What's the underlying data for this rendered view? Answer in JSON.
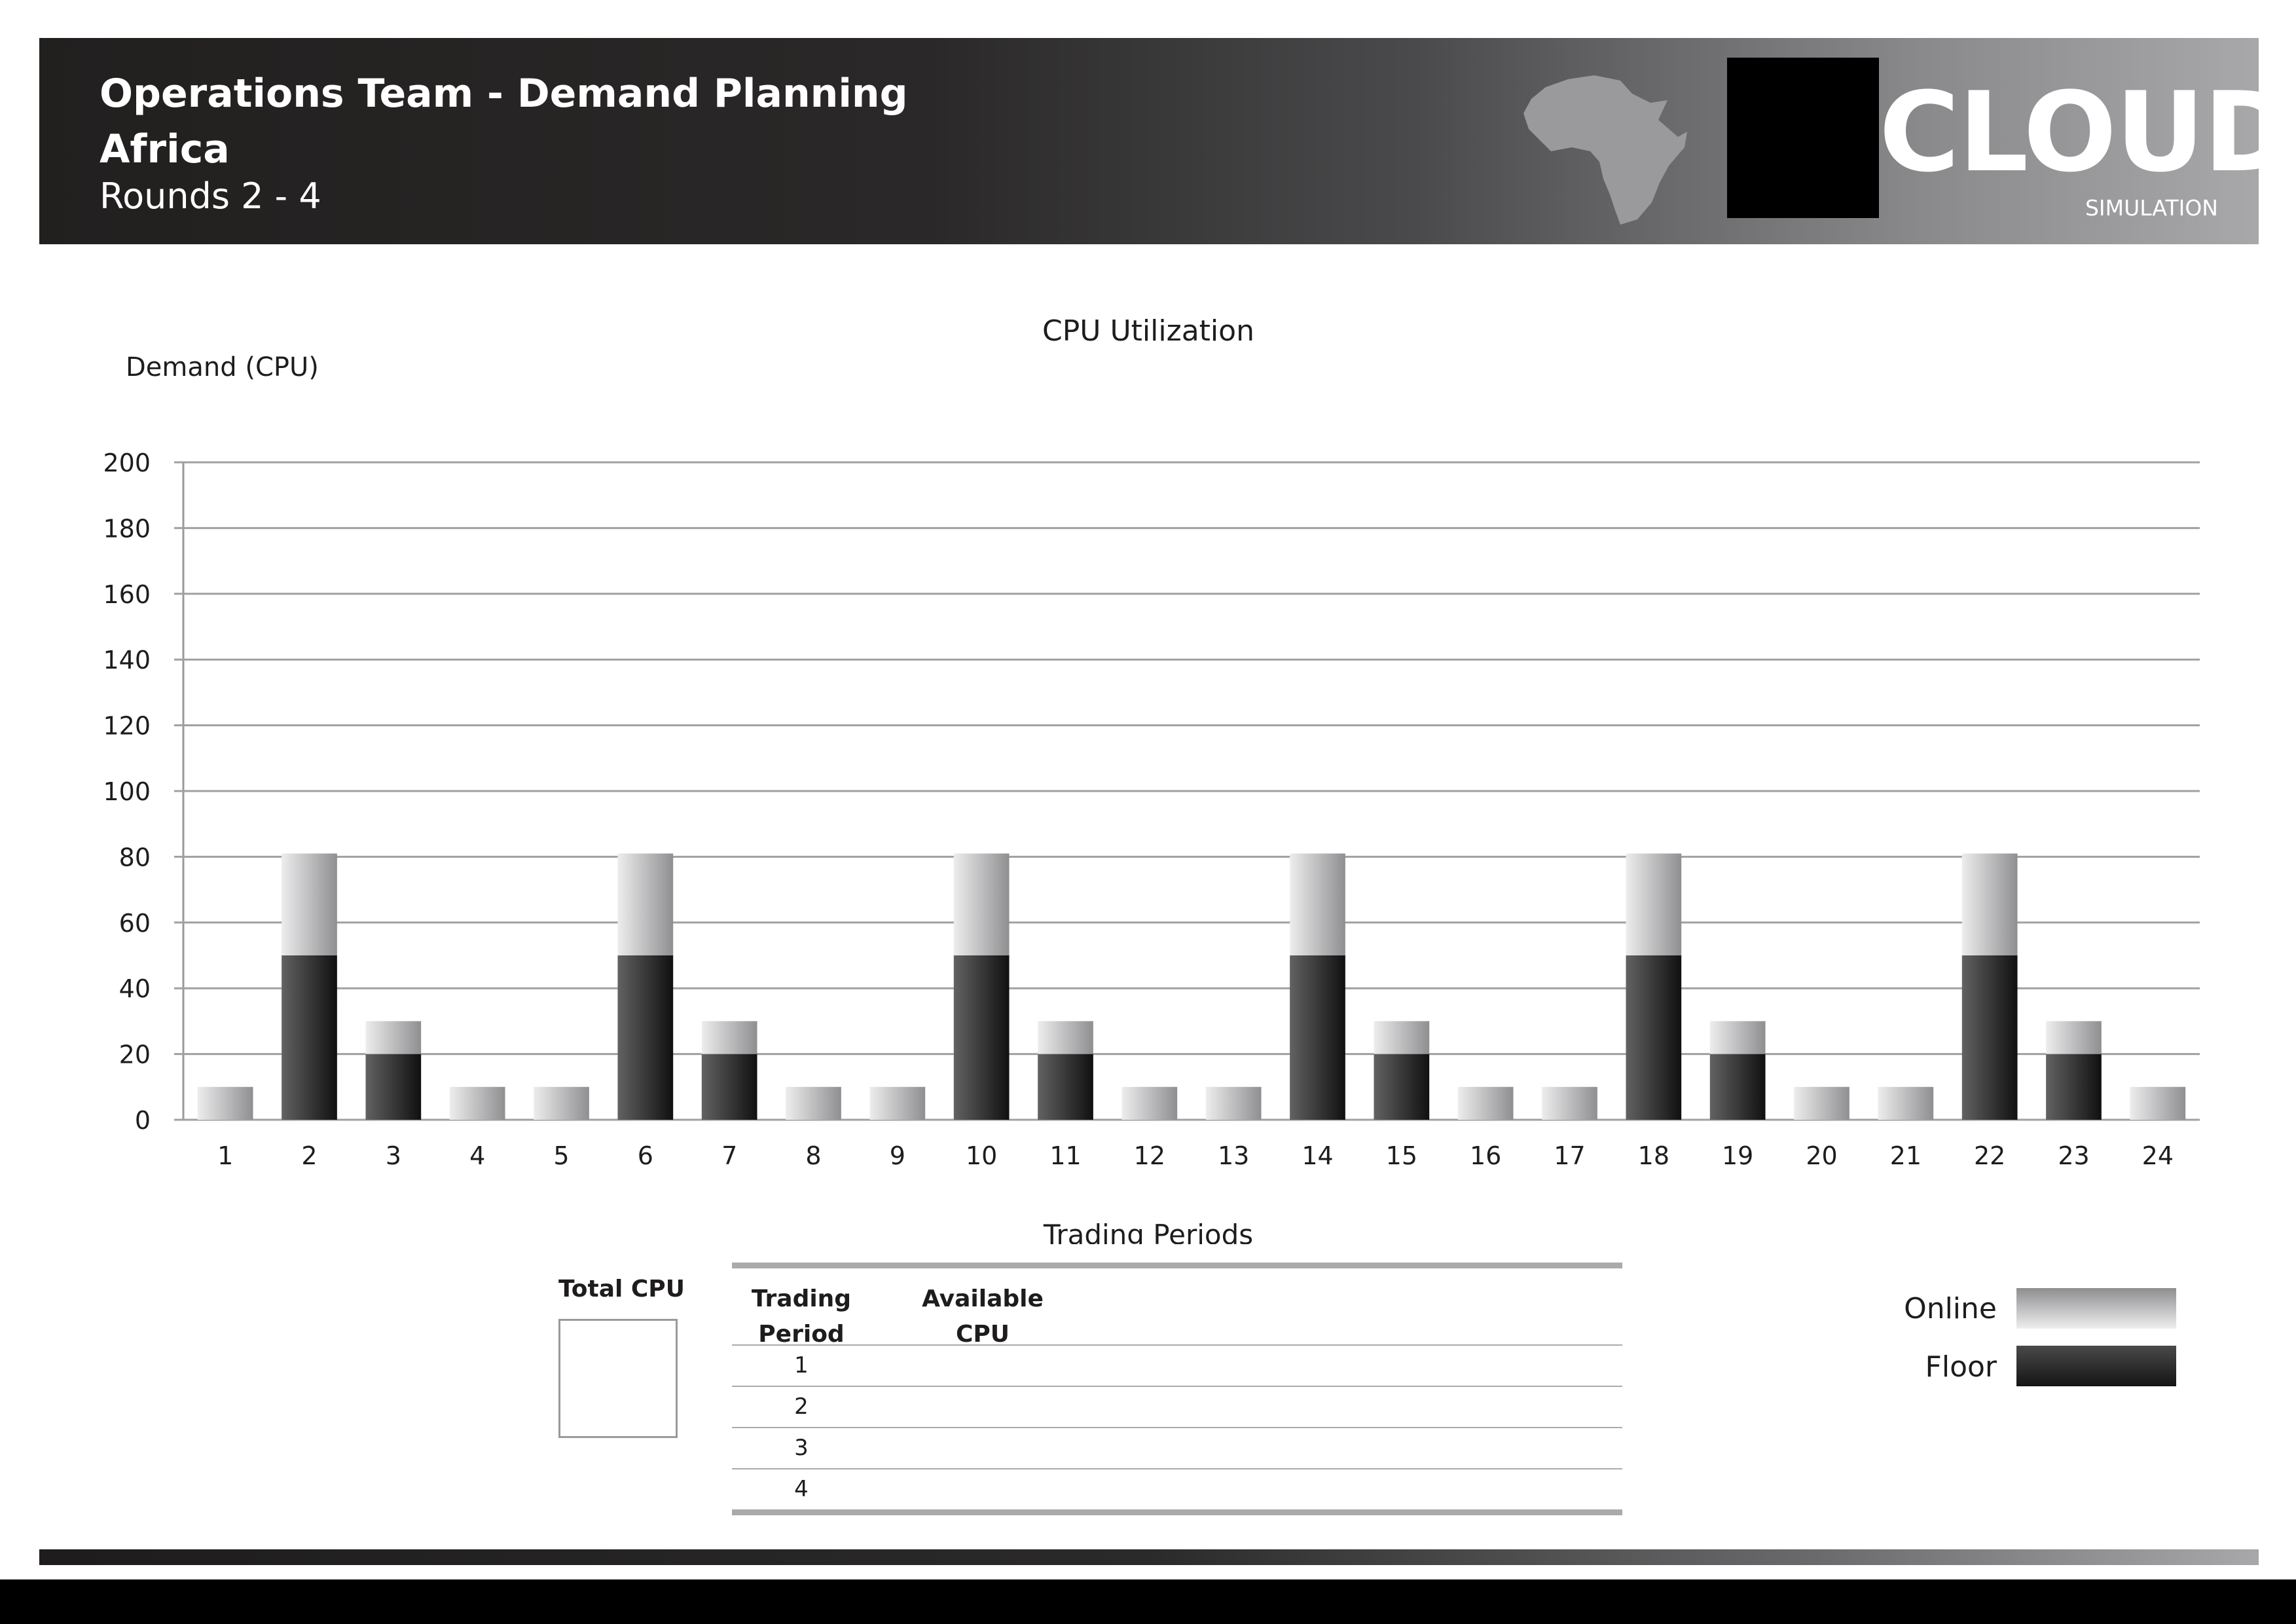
{
  "header": {
    "title": "Operations Team - Demand Planning",
    "region": "Africa",
    "rounds": "Rounds 2 - 4",
    "logo_word": "CLOUD",
    "logo_sub": "SIMULATION",
    "map_icon": "africa-map-icon"
  },
  "chart_data": {
    "type": "bar",
    "stacked": true,
    "title": "CPU Utilization",
    "ylabel": "Demand (CPU)",
    "xlabel": "Trading Periods",
    "ylim": [
      0,
      200
    ],
    "yticks": [
      0,
      20,
      40,
      60,
      80,
      100,
      120,
      140,
      160,
      180,
      200
    ],
    "grid": true,
    "categories": [
      "1",
      "2",
      "3",
      "4",
      "5",
      "6",
      "7",
      "8",
      "9",
      "10",
      "11",
      "12",
      "13",
      "14",
      "15",
      "16",
      "17",
      "18",
      "19",
      "20",
      "21",
      "22",
      "23",
      "24"
    ],
    "series": [
      {
        "name": "Floor",
        "color": "#2a2a2a",
        "values": [
          0,
          50,
          20,
          0,
          0,
          50,
          20,
          0,
          0,
          50,
          20,
          0,
          0,
          50,
          20,
          0,
          0,
          50,
          20,
          0,
          0,
          50,
          20,
          0
        ]
      },
      {
        "name": "Online",
        "color": "#c8c8c9",
        "values": [
          10,
          31,
          10,
          10,
          10,
          31,
          10,
          10,
          10,
          31,
          10,
          10,
          10,
          31,
          10,
          10,
          10,
          31,
          10,
          10,
          10,
          31,
          10,
          10
        ]
      }
    ],
    "legend": {
      "position": "bottom-right"
    }
  },
  "total_cpu": {
    "label": "Total CPU",
    "value": ""
  },
  "table": {
    "headers": [
      "Trading\nPeriod",
      "Available\nCPU"
    ],
    "rows": [
      {
        "period": "1",
        "cpu": ""
      },
      {
        "period": "2",
        "cpu": ""
      },
      {
        "period": "3",
        "cpu": ""
      },
      {
        "period": "4",
        "cpu": ""
      }
    ]
  }
}
